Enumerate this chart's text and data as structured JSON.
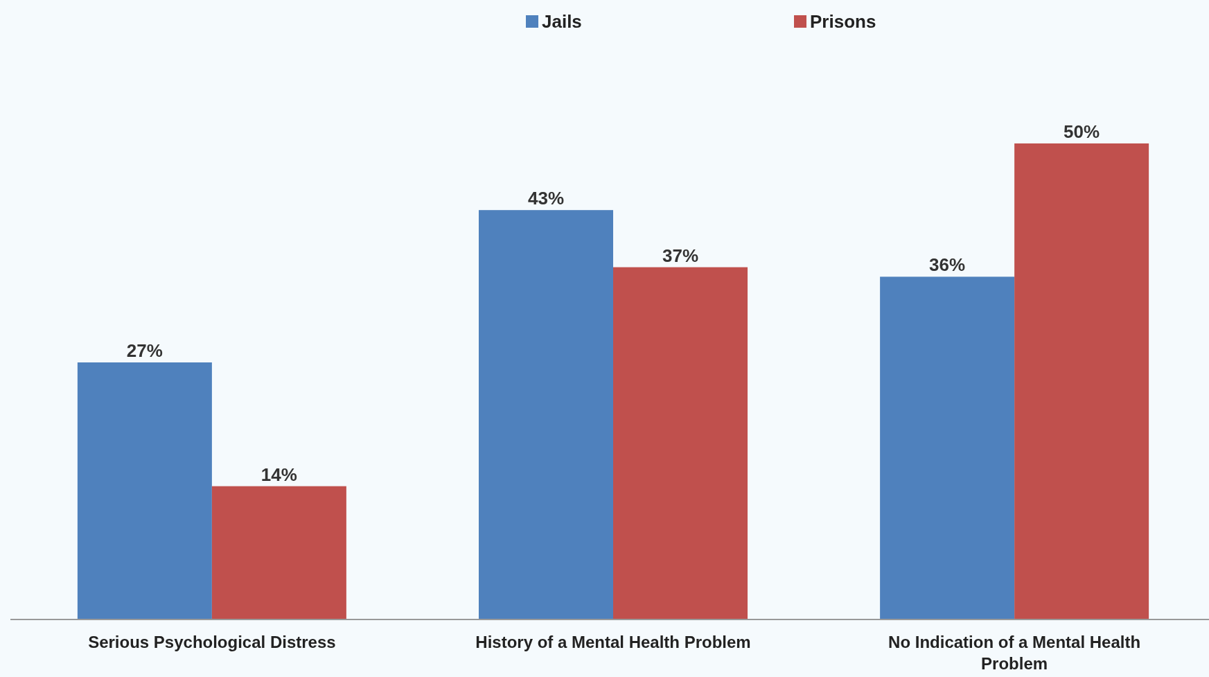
{
  "chart_data": {
    "type": "bar",
    "categories": [
      "Serious Psychological Distress",
      "History of a Mental Health Problem",
      "No Indication of a Mental Health Problem"
    ],
    "series": [
      {
        "name": "Jails",
        "color": "#4f81bd",
        "values": [
          27,
          43,
          36
        ],
        "value_labels": [
          "27%",
          "43%",
          "36%"
        ]
      },
      {
        "name": "Prisons",
        "color": "#c0504d",
        "values": [
          14,
          37,
          50
        ],
        "value_labels": [
          "14%",
          "37%",
          "50%"
        ]
      }
    ],
    "legend": "top",
    "grid": false
  }
}
